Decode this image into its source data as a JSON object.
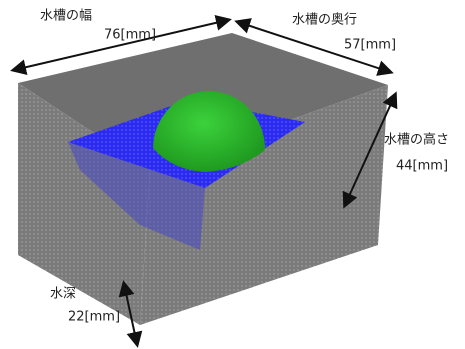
{
  "width": {
    "label": "水槽の幅",
    "value": "76[mm]"
  },
  "depth": {
    "label": "水槽の奥行",
    "value": "57[mm]"
  },
  "height": {
    "label": "水槽の高さ",
    "value": "44[mm]"
  },
  "water_depth": {
    "label": "水深",
    "value": "22[mm]"
  }
}
